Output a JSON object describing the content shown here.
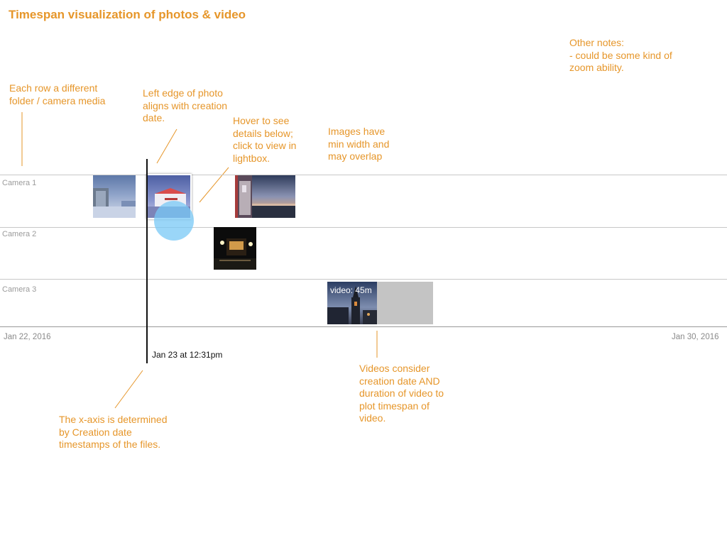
{
  "title": "Timespan visualization of photos & video",
  "notes": {
    "other": [
      "Other notes:",
      "- could be some kind of",
      "zoom ability."
    ],
    "rows": [
      "Each row a different",
      "folder / camera media"
    ],
    "left_edge": [
      "Left edge of photo",
      "aligns with creation",
      "date."
    ],
    "hover": [
      "Hover to see",
      "details below;",
      "click to view in",
      "lightbox."
    ],
    "min_width": [
      "Images have",
      "min width and",
      "may overlap"
    ],
    "videos": [
      "Videos consider",
      "creation date AND",
      "duration of video to",
      "plot timespan of",
      "video."
    ],
    "xaxis": [
      "The x-axis is determined",
      "by Creation date",
      "timestamps of the files."
    ]
  },
  "rows": [
    {
      "label": "Camera 1"
    },
    {
      "label": "Camera 2"
    },
    {
      "label": "Camera 3"
    }
  ],
  "axis": {
    "start_label": "Jan 22, 2016",
    "end_label": "Jan 30, 2016"
  },
  "cursor": {
    "label": "Jan 23 at 12:31pm"
  },
  "video": {
    "label": "video: 45m"
  },
  "colors": {
    "annotation": "#e6962a",
    "hover_highlight": "#78c8f5",
    "row_divider": "#c8c8c8",
    "video_span": "#c4c4c4"
  },
  "icons": {
    "hover_indicator": "circle"
  }
}
